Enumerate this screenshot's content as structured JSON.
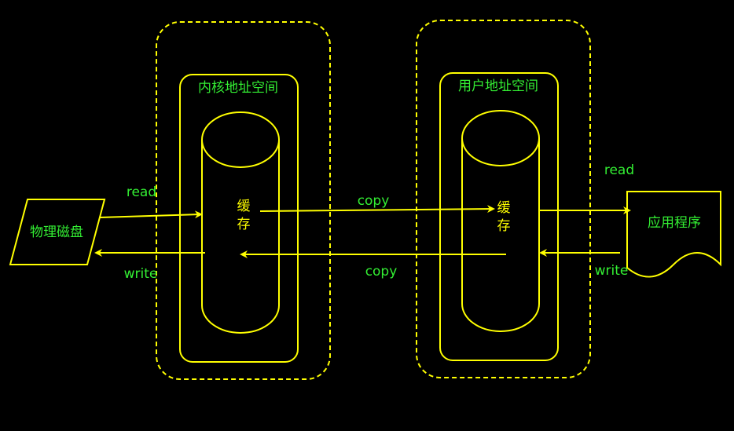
{
  "colors": {
    "background": "#000000",
    "stroke": "#ffff00",
    "text": "#33ee33",
    "cache_text": "#ffff00"
  },
  "nodes": {
    "disk": {
      "label": "物理磁盘"
    },
    "kernel_space": {
      "label": "内核地址空间"
    },
    "kernel_cache": {
      "label": "缓\n存"
    },
    "user_space": {
      "label": "用户地址空间"
    },
    "user_cache": {
      "label": "缓\n存"
    },
    "application": {
      "label": "应用程序"
    }
  },
  "edges": {
    "disk_to_kernel": {
      "label": "read"
    },
    "kernel_to_disk": {
      "label": "write"
    },
    "kernel_to_user": {
      "label": "copy"
    },
    "user_to_kernel": {
      "label": "copy"
    },
    "user_to_app": {
      "label": "read"
    },
    "app_to_user": {
      "label": "write"
    }
  }
}
